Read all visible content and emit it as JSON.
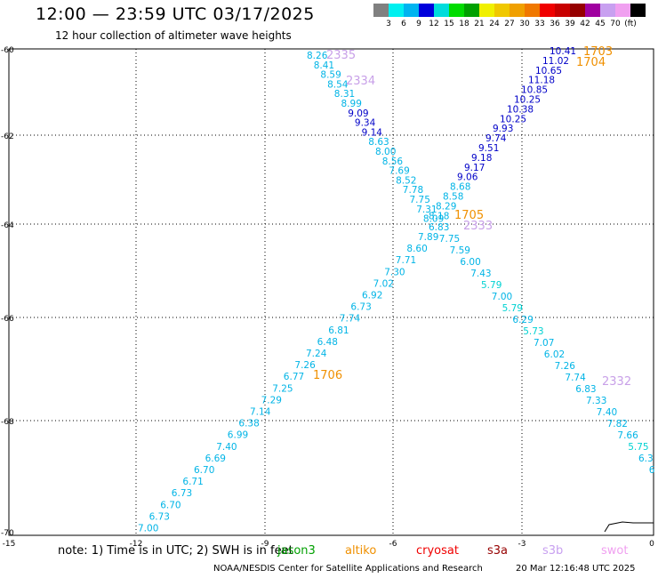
{
  "title": "12:00 — 23:59 UTC 03/17/2025",
  "subtitle": "12 hour collection of altimeter wave heights",
  "legend": {
    "colors": [
      "#808080",
      "#00f0f0",
      "#00b4f0",
      "#0000dc",
      "#00dcdc",
      "#00dc00",
      "#00a000",
      "#f0f000",
      "#f0c800",
      "#f0a000",
      "#f07800",
      "#f00000",
      "#c80000",
      "#960000",
      "#a000a0",
      "#c8a0f0",
      "#f0a0f0",
      "#000000"
    ],
    "labels": [
      "3",
      "6",
      "9",
      "12",
      "15",
      "18",
      "21",
      "24",
      "27",
      "30",
      "33",
      "36",
      "39",
      "42",
      "45",
      "70",
      "(ft)"
    ]
  },
  "axis": {
    "x_ticks": [
      "-15",
      "-12",
      "-9",
      "-6",
      "-3",
      "0"
    ],
    "y_ticks": [
      "-60",
      "-62",
      "-64",
      "-66",
      "-68",
      "-70"
    ]
  },
  "tracks": [
    {
      "id": "2335",
      "color": "#c8a0e8",
      "label_color": "#c8a0e8"
    },
    {
      "id": "2334",
      "color": "#c8a0e8",
      "label_color": "#c8a0e8"
    },
    {
      "id": "1703",
      "color": "#f09000",
      "label_color": "#f09000"
    },
    {
      "id": "1704",
      "color": "#f09000",
      "label_color": "#f09000"
    },
    {
      "id": "1705",
      "color": "#f09000",
      "label_color": "#f09000"
    },
    {
      "id": "2333",
      "color": "#c8a0e8",
      "label_color": "#c8a0e8"
    },
    {
      "id": "1706",
      "color": "#f09000",
      "label_color": "#f09000"
    },
    {
      "id": "2332",
      "color": "#c8a0e8",
      "label_color": "#c8a0e8"
    }
  ],
  "readings": {
    "track_down": [
      "8.26",
      "8.41",
      "8.59",
      "8.54",
      "8.31",
      "8.99",
      "9.09",
      "9.34",
      "9.14",
      "8.63",
      "8.00",
      "8.56",
      "7.69",
      "8.52",
      "7.78",
      "7.75",
      "7.31",
      "8.09",
      "7.89",
      "8.60",
      "7.71",
      "7.30",
      "7.02",
      "6.92",
      "6.73",
      "7.74",
      "6.81",
      "6.48",
      "7.24",
      "7.26",
      "6.77",
      "7.25",
      "7.29",
      "7.14",
      "6.38",
      "6.99",
      "7.40",
      "6.69",
      "6.70",
      "6.71",
      "6.73",
      "6.70",
      "6.73",
      "7.00"
    ],
    "track_up": [
      "10.41",
      "11.02",
      "10.65",
      "11.18",
      "10.85",
      "10.25",
      "10.38",
      "10.25",
      "9.93",
      "9.74",
      "9.51",
      "9.18",
      "9.17",
      "9.06",
      "8.68",
      "8.58",
      "8.29",
      "8.18",
      "6.83",
      "7.75",
      "7.59",
      "6.00",
      "7.43",
      "5.79",
      "7.00",
      "5.79",
      "6.29",
      "5.73",
      "7.07",
      "6.02",
      "7.26",
      "7.74",
      "6.83",
      "7.33",
      "7.40",
      "7.82",
      "7.66",
      "5.75",
      "6.3",
      "6"
    ]
  },
  "note": "note:  1) Time is in UTC; 2) SWH is in feet",
  "satellites": [
    {
      "name": "jason3",
      "color": "#00a000"
    },
    {
      "name": "altiko",
      "color": "#f09000"
    },
    {
      "name": "cryosat",
      "color": "#f00000"
    },
    {
      "name": "s3a",
      "color": "#960000"
    },
    {
      "name": "s3b",
      "color": "#c8a0f0"
    },
    {
      "name": "swot",
      "color": "#f0a0f0"
    }
  ],
  "credit": "NOAA/NESDIS Center for Satellite Applications and Research",
  "timestamp": "20 Mar 12:16:48 UTC 2025"
}
